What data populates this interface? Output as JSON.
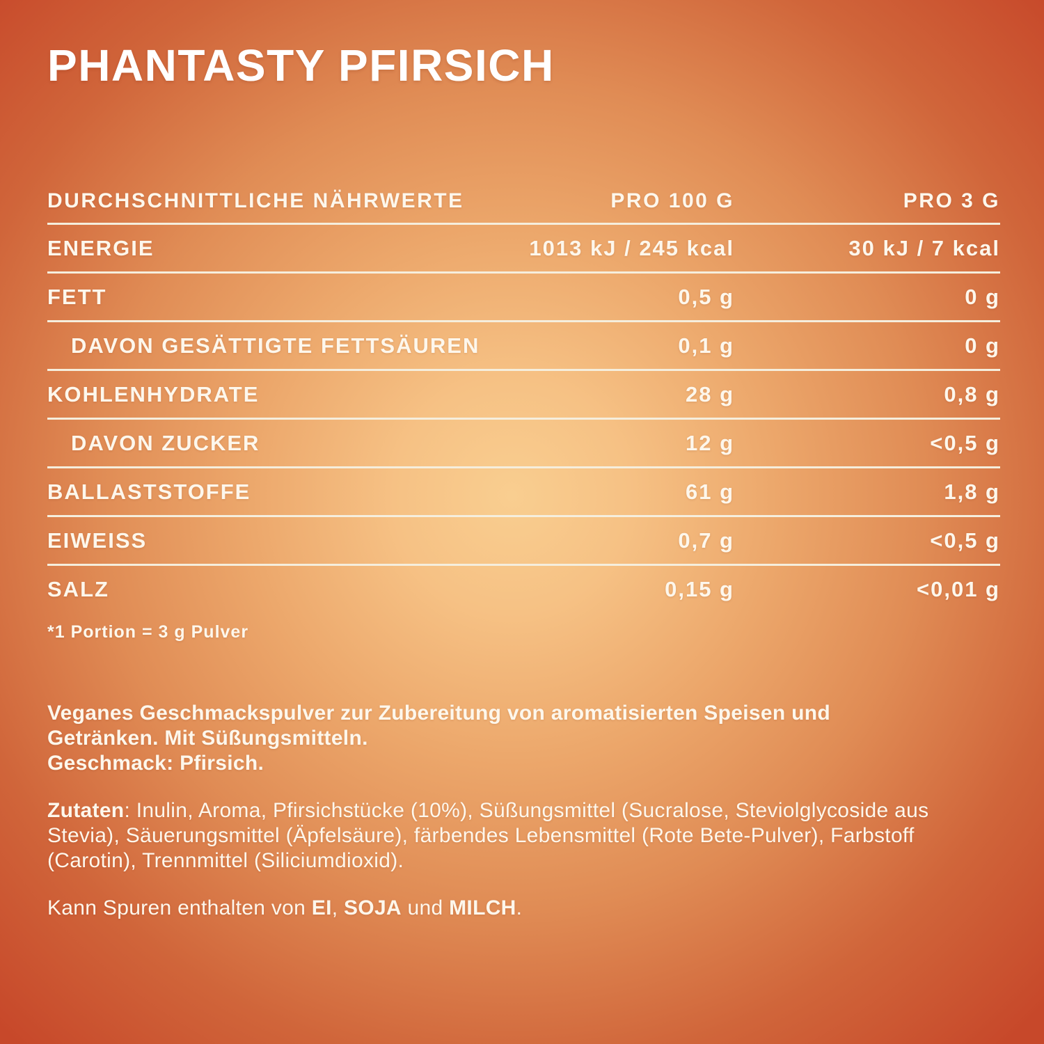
{
  "title": "PHANTASTY PFIRSICH",
  "table": {
    "headers": [
      "DURCHSCHNITTLICHE NÄHRWERTE",
      "PRO 100 G",
      "PRO 3 G"
    ],
    "rows": [
      {
        "label": "ENERGIE",
        "per100g": "1013 kJ / 245 kcal",
        "per3g": "30 kJ / 7 kcal",
        "indent": false
      },
      {
        "label": "FETT",
        "per100g": "0,5 g",
        "per3g": "0 g",
        "indent": false
      },
      {
        "label": "DAVON GESÄTTIGTE FETTSÄUREN",
        "per100g": "0,1 g",
        "per3g": "0 g",
        "indent": true
      },
      {
        "label": "KOHLENHYDRATE",
        "per100g": "28 g",
        "per3g": "0,8 g",
        "indent": false
      },
      {
        "label": "DAVON ZUCKER",
        "per100g": "12 g",
        "per3g": "<0,5 g",
        "indent": true
      },
      {
        "label": "BALLASTSTOFFE",
        "per100g": "61 g",
        "per3g": "1,8 g",
        "indent": false
      },
      {
        "label": "EIWEISS",
        "per100g": "0,7 g",
        "per3g": "<0,5 g",
        "indent": false
      },
      {
        "label": "SALZ",
        "per100g": "0,15 g",
        "per3g": "<0,01 g",
        "indent": false
      }
    ],
    "footnote": "*1 Portion = 3 g Pulver"
  },
  "description": {
    "line1": "Veganes Geschmackspulver zur Zubereitung von aromatisierten Speisen und Getränken. Mit Süßungsmitteln.",
    "line2": "Geschmack: Pfirsich."
  },
  "ingredients": {
    "parts": [
      {
        "text": "Zutaten",
        "bold": true
      },
      {
        "text": ": Inulin, Aroma, Pfirsichstücke (10%), Süßungsmittel (Sucralose, Steviolglycoside aus Stevia), Säuerungsmittel (Äpfelsäure), färbendes Lebensmittel (Rote Bete-Pulver), Farbstoff (Carotin), Trennmittel (Siliciumdioxid).",
        "bold": false
      }
    ]
  },
  "allergens": {
    "parts": [
      {
        "text": "Kann Spuren enthalten von ",
        "bold": false
      },
      {
        "text": "EI",
        "bold": true
      },
      {
        "text": ", ",
        "bold": false
      },
      {
        "text": "SOJA",
        "bold": true
      },
      {
        "text": " und ",
        "bold": false
      },
      {
        "text": "MILCH",
        "bold": true
      },
      {
        "text": ".",
        "bold": false
      }
    ]
  },
  "colors": {
    "background_center": "#f9ce90",
    "background_edge": "#c7482a",
    "text": "#fdf7ec",
    "divider": "#f5eedd"
  }
}
